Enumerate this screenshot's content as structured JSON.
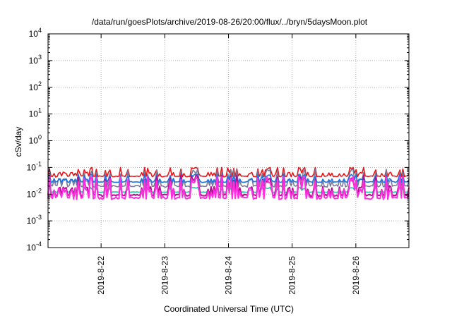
{
  "chart_data": {
    "type": "line",
    "title": "/data/run/goesPlots/archive/2019-08-26/20:00/flux/../bryn/5daysMoon.plot",
    "xlabel": "Coordinated Universal Time (UTC)",
    "ylabel": "cSv/day",
    "y_scale": "log",
    "ylim": [
      0.0001,
      10000
    ],
    "xlim": [
      "2019-08-21 04:00",
      "2019-08-26 20:00"
    ],
    "grid": true,
    "legend": "none",
    "y_ticks": [
      {
        "base": "10",
        "exp": "-4"
      },
      {
        "base": "10",
        "exp": "-3"
      },
      {
        "base": "10",
        "exp": "-2"
      },
      {
        "base": "10",
        "exp": "-1"
      },
      {
        "base": "10",
        "exp": "0"
      },
      {
        "base": "10",
        "exp": "1"
      },
      {
        "base": "10",
        "exp": "2"
      },
      {
        "base": "10",
        "exp": "3"
      },
      {
        "base": "10",
        "exp": "4"
      }
    ],
    "x_ticks": [
      "2019-8-22",
      "2019-8-23",
      "2019-8-24",
      "2019-8-25",
      "2019-8-26"
    ],
    "series": [
      {
        "color": "#e8151b",
        "low": 0.04,
        "high": 0.1
      },
      {
        "color": "#7a7a9a",
        "low": 0.015,
        "high": 0.085
      },
      {
        "color": "#1a73e8",
        "low": 0.025,
        "high": 0.055
      },
      {
        "color": "#26c6a6",
        "low": 0.011,
        "high": 0.018
      },
      {
        "color": "#b01090",
        "low": 0.0065,
        "high": 0.05
      },
      {
        "color": "#ff2ee0",
        "low": 0.005,
        "high": 0.045
      }
    ]
  }
}
